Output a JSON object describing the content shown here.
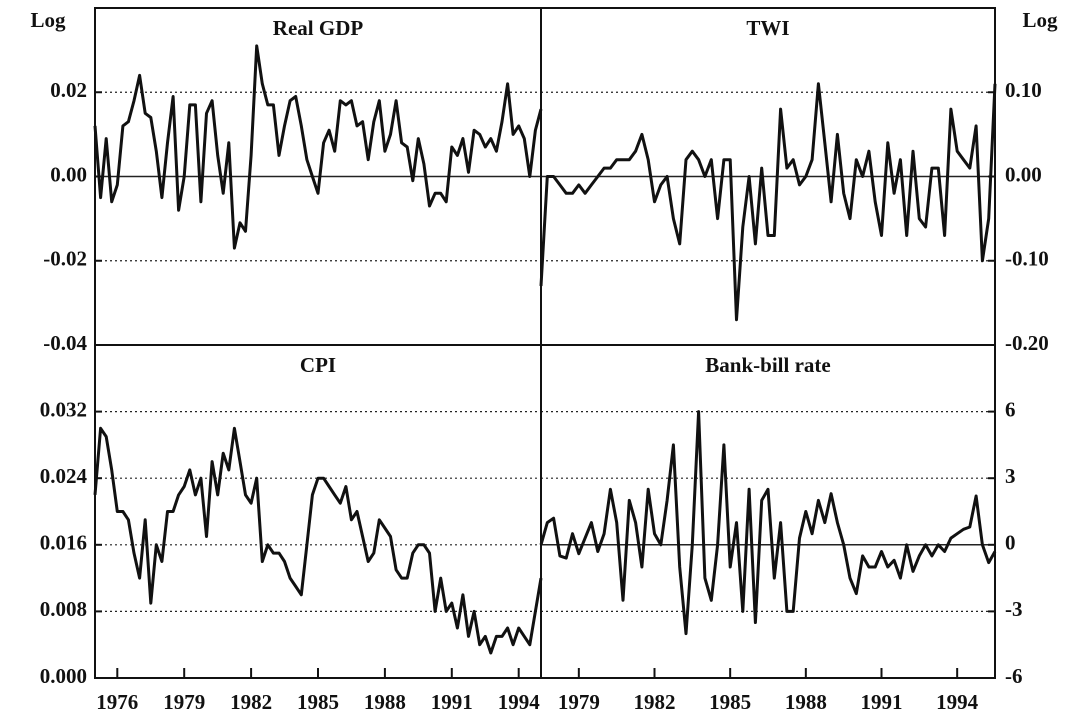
{
  "chart_data": [
    {
      "type": "line",
      "title": "Real GDP",
      "y_label": "Log",
      "color": "#111111",
      "grid": true,
      "xlim": [
        1975,
        1995
      ],
      "ylim": [
        -0.04,
        0.04
      ],
      "yticks": [
        0.02,
        {
          "value": 0,
          "label": "0.00"
        },
        -0.02,
        -0.04
      ],
      "x": [
        1975,
        1975.25,
        1975.5,
        1975.75,
        1976,
        1976.25,
        1976.5,
        1976.75,
        1977,
        1977.25,
        1977.5,
        1977.75,
        1978,
        1978.25,
        1978.5,
        1978.75,
        1979,
        1979.25,
        1979.5,
        1979.75,
        1980,
        1980.25,
        1980.5,
        1980.75,
        1981,
        1981.25,
        1981.5,
        1981.75,
        1982,
        1982.25,
        1982.5,
        1982.75,
        1983,
        1983.25,
        1983.5,
        1983.75,
        1984,
        1984.25,
        1984.5,
        1984.75,
        1985,
        1985.25,
        1985.5,
        1985.75,
        1986,
        1986.25,
        1986.5,
        1986.75,
        1987,
        1987.25,
        1987.5,
        1987.75,
        1988,
        1988.25,
        1988.5,
        1988.75,
        1989,
        1989.25,
        1989.5,
        1989.75,
        1990,
        1990.25,
        1990.5,
        1990.75,
        1991,
        1991.25,
        1991.5,
        1991.75,
        1992,
        1992.25,
        1992.5,
        1992.75,
        1993,
        1993.25,
        1993.5,
        1993.75,
        1994,
        1994.25,
        1994.5,
        1994.75,
        1995
      ],
      "values": [
        0.012,
        -0.005,
        0.009,
        -0.006,
        -0.002,
        0.012,
        0.013,
        0.018,
        0.024,
        0.015,
        0.014,
        0.006,
        -0.005,
        0.008,
        0.019,
        -0.008,
        0.0,
        0.017,
        0.017,
        -0.006,
        0.015,
        0.018,
        0.005,
        -0.004,
        0.008,
        -0.017,
        -0.011,
        -0.013,
        0.005,
        0.031,
        0.022,
        0.017,
        0.017,
        0.005,
        0.012,
        0.018,
        0.019,
        0.012,
        0.004,
        0.0,
        -0.004,
        0.008,
        0.011,
        0.006,
        0.018,
        0.017,
        0.018,
        0.012,
        0.013,
        0.004,
        0.013,
        0.018,
        0.006,
        0.01,
        0.018,
        0.008,
        0.007,
        -0.001,
        0.009,
        0.003,
        -0.007,
        -0.004,
        -0.004,
        -0.006,
        0.007,
        0.005,
        0.009,
        0.001,
        0.011,
        0.01,
        0.007,
        0.009,
        0.006,
        0.013,
        0.022,
        0.01,
        0.012,
        0.009,
        0.0,
        0.011,
        0.016
      ]
    },
    {
      "type": "line",
      "title": "TWI",
      "y_label": "Log",
      "color": "#111111",
      "grid": true,
      "xlim": [
        1977.5,
        1995.5
      ],
      "ylim": [
        -0.2,
        0.2
      ],
      "yticks": [
        {
          "value": 0.1,
          "label": "0.10"
        },
        {
          "value": 0,
          "label": "0.00"
        },
        {
          "value": -0.1,
          "label": "-0.10"
        },
        {
          "value": -0.2,
          "label": "-0.20"
        }
      ],
      "x": [
        1977.5,
        1977.75,
        1978,
        1978.25,
        1978.5,
        1978.75,
        1979,
        1979.25,
        1979.5,
        1979.75,
        1980,
        1980.25,
        1980.5,
        1980.75,
        1981,
        1981.25,
        1981.5,
        1981.75,
        1982,
        1982.25,
        1982.5,
        1982.75,
        1983,
        1983.25,
        1983.5,
        1983.75,
        1984,
        1984.25,
        1984.5,
        1984.75,
        1985,
        1985.25,
        1985.5,
        1985.75,
        1986,
        1986.25,
        1986.5,
        1986.75,
        1987,
        1987.25,
        1987.5,
        1987.75,
        1988,
        1988.25,
        1988.5,
        1988.75,
        1989,
        1989.25,
        1989.5,
        1989.75,
        1990,
        1990.25,
        1990.5,
        1990.75,
        1991,
        1991.25,
        1991.5,
        1991.75,
        1992,
        1992.25,
        1992.5,
        1992.75,
        1993,
        1993.25,
        1993.5,
        1993.75,
        1994,
        1994.25,
        1994.5,
        1994.75,
        1995,
        1995.25,
        1995.5
      ],
      "values": [
        -0.13,
        0.0,
        0.0,
        -0.01,
        -0.02,
        -0.02,
        -0.01,
        -0.02,
        -0.01,
        0.0,
        0.01,
        0.01,
        0.02,
        0.02,
        0.02,
        0.03,
        0.05,
        0.02,
        -0.03,
        -0.01,
        0.0,
        -0.05,
        -0.08,
        0.02,
        0.03,
        0.02,
        0.0,
        0.02,
        -0.05,
        0.02,
        0.02,
        -0.17,
        -0.06,
        0.0,
        -0.08,
        0.01,
        -0.07,
        -0.07,
        0.08,
        0.01,
        0.02,
        -0.01,
        0.0,
        0.02,
        0.11,
        0.04,
        -0.03,
        0.05,
        -0.02,
        -0.05,
        0.02,
        0.0,
        0.03,
        -0.03,
        -0.07,
        0.04,
        -0.02,
        0.02,
        -0.07,
        0.03,
        -0.05,
        -0.06,
        0.01,
        0.01,
        -0.07,
        0.08,
        0.03,
        0.02,
        0.01,
        0.06,
        -0.1,
        -0.05,
        0.11
      ]
    },
    {
      "type": "line",
      "title": "CPI",
      "color": "#111111",
      "grid": true,
      "xlim": [
        1975,
        1995
      ],
      "ylim": [
        0,
        0.04
      ],
      "yticks": [
        0.032,
        0.024,
        0.016,
        0.008,
        {
          "value": 0,
          "label": "0.000"
        }
      ],
      "xticks": [
        1976,
        1979,
        1982,
        1985,
        1988,
        1991,
        1994
      ],
      "x": [
        1975,
        1975.25,
        1975.5,
        1975.75,
        1976,
        1976.25,
        1976.5,
        1976.75,
        1977,
        1977.25,
        1977.5,
        1977.75,
        1978,
        1978.25,
        1978.5,
        1978.75,
        1979,
        1979.25,
        1979.5,
        1979.75,
        1980,
        1980.25,
        1980.5,
        1980.75,
        1981,
        1981.25,
        1981.5,
        1981.75,
        1982,
        1982.25,
        1982.5,
        1982.75,
        1983,
        1983.25,
        1983.5,
        1983.75,
        1984,
        1984.25,
        1984.5,
        1984.75,
        1985,
        1985.25,
        1985.5,
        1985.75,
        1986,
        1986.25,
        1986.5,
        1986.75,
        1987,
        1987.25,
        1987.5,
        1987.75,
        1988,
        1988.25,
        1988.5,
        1988.75,
        1989,
        1989.25,
        1989.5,
        1989.75,
        1990,
        1990.25,
        1990.5,
        1990.75,
        1991,
        1991.25,
        1991.5,
        1991.75,
        1992,
        1992.25,
        1992.5,
        1992.75,
        1993,
        1993.25,
        1993.5,
        1993.75,
        1994,
        1994.25,
        1994.5,
        1994.75,
        1995
      ],
      "values": [
        0.022,
        0.03,
        0.029,
        0.025,
        0.02,
        0.02,
        0.019,
        0.015,
        0.012,
        0.019,
        0.009,
        0.016,
        0.014,
        0.02,
        0.02,
        0.022,
        0.023,
        0.025,
        0.022,
        0.024,
        0.017,
        0.026,
        0.022,
        0.027,
        0.025,
        0.03,
        0.026,
        0.022,
        0.021,
        0.024,
        0.014,
        0.016,
        0.015,
        0.015,
        0.014,
        0.012,
        0.011,
        0.01,
        0.016,
        0.022,
        0.024,
        0.024,
        0.023,
        0.022,
        0.021,
        0.023,
        0.019,
        0.02,
        0.017,
        0.014,
        0.015,
        0.019,
        0.018,
        0.017,
        0.013,
        0.012,
        0.012,
        0.015,
        0.016,
        0.016,
        0.015,
        0.008,
        0.012,
        0.008,
        0.009,
        0.006,
        0.01,
        0.005,
        0.008,
        0.004,
        0.005,
        0.003,
        0.005,
        0.005,
        0.006,
        0.004,
        0.006,
        0.005,
        0.004,
        0.008,
        0.012
      ]
    },
    {
      "type": "line",
      "title": "Bank-bill rate",
      "color": "#111111",
      "grid": true,
      "xlim": [
        1977.5,
        1995.5
      ],
      "ylim": [
        -6,
        9
      ],
      "yticks": [
        6,
        3,
        0,
        -3,
        -6
      ],
      "xticks": [
        1979,
        1982,
        1985,
        1988,
        1991,
        1994
      ],
      "x": [
        1977.5,
        1977.75,
        1978,
        1978.25,
        1978.5,
        1978.75,
        1979,
        1979.25,
        1979.5,
        1979.75,
        1980,
        1980.25,
        1980.5,
        1980.75,
        1981,
        1981.25,
        1981.5,
        1981.75,
        1982,
        1982.25,
        1982.5,
        1982.75,
        1983,
        1983.25,
        1983.5,
        1983.75,
        1984,
        1984.25,
        1984.5,
        1984.75,
        1985,
        1985.25,
        1985.5,
        1985.75,
        1986,
        1986.25,
        1986.5,
        1986.75,
        1987,
        1987.25,
        1987.5,
        1987.75,
        1988,
        1988.25,
        1988.5,
        1988.75,
        1989,
        1989.25,
        1989.5,
        1989.75,
        1990,
        1990.25,
        1990.5,
        1990.75,
        1991,
        1991.25,
        1991.5,
        1991.75,
        1992,
        1992.25,
        1992.5,
        1992.75,
        1993,
        1993.25,
        1993.5,
        1993.75,
        1994,
        1994.25,
        1994.5,
        1994.75,
        1995,
        1995.25,
        1995.5
      ],
      "values": [
        0.0,
        1.0,
        1.2,
        -0.5,
        -0.6,
        0.5,
        -0.4,
        0.3,
        1.0,
        -0.3,
        0.5,
        2.5,
        1.0,
        -2.5,
        2.0,
        1.0,
        -1.0,
        2.5,
        0.5,
        0.0,
        2.0,
        4.5,
        -1.0,
        -4.0,
        0.0,
        6.0,
        -1.5,
        -2.5,
        0.0,
        4.5,
        -1.0,
        1.0,
        -3.0,
        2.5,
        -3.5,
        2.0,
        2.5,
        -1.5,
        1.0,
        -3.0,
        -3.0,
        0.3,
        1.5,
        0.5,
        2.0,
        1.0,
        2.3,
        1.0,
        0.0,
        -1.5,
        -2.2,
        -0.5,
        -1.0,
        -1.0,
        -0.3,
        -1.0,
        -0.7,
        -1.5,
        0.0,
        -1.2,
        -0.5,
        0.0,
        -0.5,
        0.0,
        -0.3,
        0.3,
        0.5,
        0.7,
        0.8,
        2.2,
        0.0,
        -0.8,
        -0.3
      ]
    }
  ]
}
